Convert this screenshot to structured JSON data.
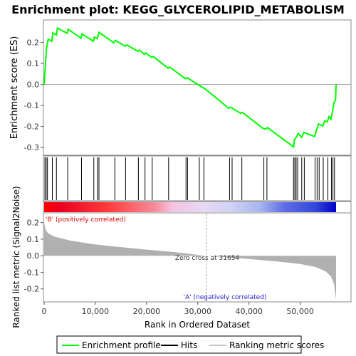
{
  "chart_data": {
    "type": "line",
    "title": "Enrichment plot: KEGG_GLYCEROLIPID_METABOLISM",
    "xlabel": "Rank in Ordered Dataset",
    "xlim": [
      0,
      57000
    ],
    "x_ticks": [
      0,
      10000,
      20000,
      30000,
      40000,
      50000
    ],
    "x_tick_labels": [
      "0",
      "10,000",
      "20,000",
      "30,000",
      "40,000",
      "50,000"
    ],
    "es_panel": {
      "ylabel": "Enrichment score (ES)",
      "ylim": [
        -0.33,
        0.3
      ],
      "y_ticks": [
        -0.3,
        -0.2,
        -0.1,
        0.0,
        0.1,
        0.2
      ],
      "y_tick_labels": [
        "-0.3",
        "-0.2",
        "-0.1",
        "0.0",
        "0.1",
        "0.2"
      ],
      "series": [
        {
          "name": "Enrichment profile",
          "color": "#00ff00",
          "points": [
            [
              0,
              0.0
            ],
            [
              150,
              0.06
            ],
            [
              300,
              0.11
            ],
            [
              450,
              0.17
            ],
            [
              800,
              0.215
            ],
            [
              1500,
              0.205
            ],
            [
              1700,
              0.245
            ],
            [
              2400,
              0.235
            ],
            [
              2600,
              0.268
            ],
            [
              4500,
              0.243
            ],
            [
              4700,
              0.262
            ],
            [
              7200,
              0.22
            ],
            [
              7400,
              0.24
            ],
            [
              9600,
              0.205
            ],
            [
              9800,
              0.225
            ],
            [
              10400,
              0.218
            ],
            [
              10700,
              0.248
            ],
            [
              13600,
              0.198
            ],
            [
              13900,
              0.21
            ],
            [
              15800,
              0.182
            ],
            [
              16100,
              0.188
            ],
            [
              18300,
              0.158
            ],
            [
              18600,
              0.163
            ],
            [
              19600,
              0.143
            ],
            [
              19800,
              0.15
            ],
            [
              21000,
              0.128
            ],
            [
              21300,
              0.133
            ],
            [
              24200,
              0.077
            ],
            [
              24500,
              0.083
            ],
            [
              27600,
              0.027
            ],
            [
              27900,
              0.032
            ],
            [
              30200,
              -0.003
            ],
            [
              31654,
              -0.025
            ],
            [
              36000,
              -0.113
            ],
            [
              36400,
              -0.108
            ],
            [
              38400,
              -0.138
            ],
            [
              38700,
              -0.133
            ],
            [
              42700,
              -0.208
            ],
            [
              43200,
              -0.213
            ],
            [
              43600,
              -0.205
            ],
            [
              48700,
              -0.297
            ],
            [
              48900,
              -0.263
            ],
            [
              49300,
              -0.248
            ],
            [
              49600,
              -0.233
            ],
            [
              50300,
              -0.252
            ],
            [
              50700,
              -0.228
            ],
            [
              52800,
              -0.248
            ],
            [
              53200,
              -0.215
            ],
            [
              53600,
              -0.188
            ],
            [
              54400,
              -0.198
            ],
            [
              54800,
              -0.173
            ],
            [
              55300,
              -0.178
            ],
            [
              55600,
              -0.153
            ],
            [
              56000,
              -0.165
            ],
            [
              56300,
              -0.13
            ],
            [
              56600,
              -0.085
            ],
            [
              56900,
              -0.075
            ],
            [
              57000,
              0.0
            ]
          ]
        }
      ]
    },
    "hits": {
      "name": "Hits",
      "color": "#000000",
      "ranks": [
        150,
        400,
        650,
        1600,
        2400,
        4600,
        7300,
        9700,
        10400,
        10700,
        13800,
        15900,
        18400,
        19700,
        21100,
        24300,
        27700,
        28000,
        30300,
        31200,
        36200,
        36700,
        38600,
        42900,
        43500,
        48700,
        48950,
        49200,
        49500,
        50300,
        50800,
        52900,
        53300,
        53700,
        54500,
        55400,
        56100,
        56400,
        56700
      ]
    },
    "ranking_band": {
      "name": "Ranking metric scores",
      "positive_label": "'B' (positively correlated)",
      "negative_label": "'A' (negatively correlated)",
      "positive_color": "#ff0000",
      "negative_color": "#0000ff"
    },
    "metric_panel": {
      "ylabel": "Ranked list metric (Signal2Noise)",
      "ylim": [
        -0.27,
        0.25
      ],
      "y_ticks": [
        -0.2,
        -0.1,
        0.0,
        0.1,
        0.2
      ],
      "y_tick_labels": [
        "-0.2",
        "-0.1",
        "0.0",
        "0.1",
        "0.2"
      ],
      "color": "#b0b0b0",
      "curve": [
        [
          0,
          0.2
        ],
        [
          300,
          0.155
        ],
        [
          800,
          0.135
        ],
        [
          2000,
          0.115
        ],
        [
          5000,
          0.092
        ],
        [
          10000,
          0.068
        ],
        [
          15000,
          0.052
        ],
        [
          20000,
          0.037
        ],
        [
          25000,
          0.023
        ],
        [
          31654,
          0.0
        ],
        [
          35000,
          -0.008
        ],
        [
          40000,
          -0.02
        ],
        [
          45000,
          -0.033
        ],
        [
          50000,
          -0.05
        ],
        [
          53000,
          -0.068
        ],
        [
          55000,
          -0.095
        ],
        [
          56000,
          -0.125
        ],
        [
          56600,
          -0.17
        ],
        [
          57000,
          -0.265
        ]
      ],
      "zero_cross_label": "Zero cross at 31654",
      "zero_cross_rank": 31654
    },
    "legend": [
      {
        "label": "Enrichment profile",
        "color": "#00ff00"
      },
      {
        "label": "Hits",
        "color": "#000000"
      },
      {
        "label": "Ranking metric scores",
        "color": "#c8c8c8"
      }
    ]
  }
}
